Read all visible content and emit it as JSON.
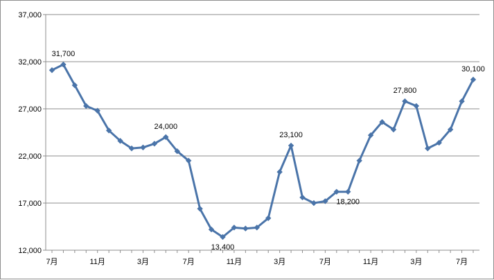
{
  "chart_data": {
    "type": "line",
    "title": "",
    "xlabel": "",
    "ylabel": "",
    "ylim": [
      12000,
      37000
    ],
    "yticks": [
      12000,
      17000,
      22000,
      27000,
      32000,
      37000
    ],
    "ytick_labels": [
      "12,000",
      "17,000",
      "22,000",
      "27,000",
      "32,000",
      "37,000"
    ],
    "x_tick_labels": [
      {
        "index": 0,
        "label": "7月"
      },
      {
        "index": 4,
        "label": "11月"
      },
      {
        "index": 8,
        "label": "3月"
      },
      {
        "index": 12,
        "label": "7月"
      },
      {
        "index": 16,
        "label": "11月"
      },
      {
        "index": 20,
        "label": "3月"
      },
      {
        "index": 24,
        "label": "7月"
      },
      {
        "index": 28,
        "label": "11月"
      },
      {
        "index": 32,
        "label": "3月"
      },
      {
        "index": 36,
        "label": "7月"
      }
    ],
    "grid": true,
    "legend": false,
    "color": "#4a74a9",
    "values": [
      31100,
      31700,
      29500,
      27300,
      26800,
      24700,
      23600,
      22800,
      22900,
      23300,
      24000,
      22500,
      21500,
      16400,
      14200,
      13400,
      14400,
      14300,
      14400,
      15400,
      20300,
      23100,
      17600,
      17000,
      17200,
      18200,
      18200,
      21500,
      24200,
      25600,
      24800,
      27800,
      27300,
      22800,
      23400,
      24800,
      27800,
      30100
    ],
    "annotations": [
      {
        "index": 1,
        "label": "31,700",
        "position": "above"
      },
      {
        "index": 10,
        "label": "24,000",
        "position": "above"
      },
      {
        "index": 15,
        "label": "13,400",
        "position": "below"
      },
      {
        "index": 21,
        "label": "23,100",
        "position": "above"
      },
      {
        "index": 26,
        "label": "18,200",
        "position": "below"
      },
      {
        "index": 31,
        "label": "27,800",
        "position": "above"
      },
      {
        "index": 37,
        "label": "30,100",
        "position": "above"
      }
    ]
  }
}
